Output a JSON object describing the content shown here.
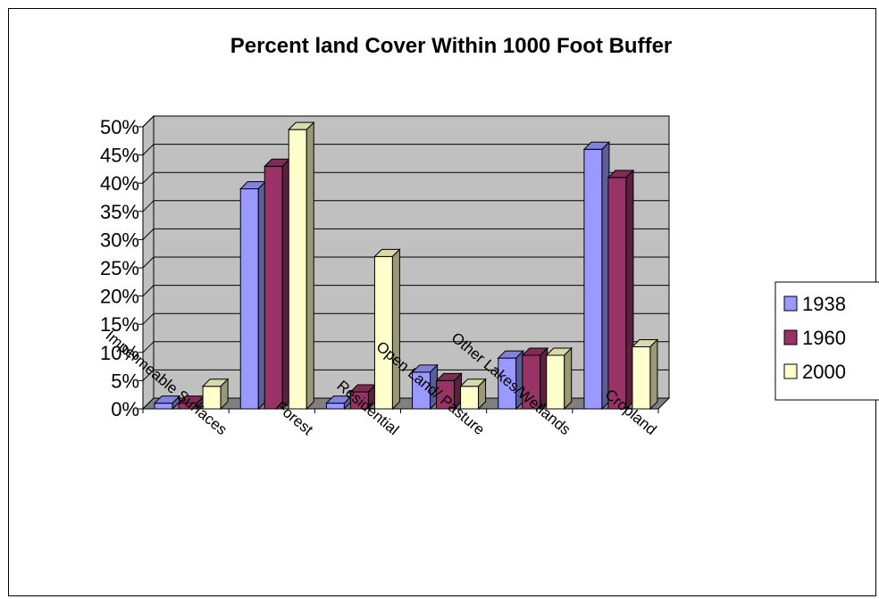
{
  "chart_data": {
    "type": "bar",
    "title": "Percent land Cover Within 1000 Foot Buffer",
    "xlabel": "",
    "ylabel": "",
    "ylim": [
      0,
      50
    ],
    "y_ticks": [
      "0%",
      "5%",
      "10%",
      "15%",
      "20%",
      "25%",
      "30%",
      "35%",
      "40%",
      "45%",
      "50%"
    ],
    "categories": [
      "Impermeable Surfaces",
      "Forest",
      "Residential",
      "Open Land/ Pasture",
      "Other Lakes/Wetlands",
      "Cropland"
    ],
    "series": [
      {
        "name": "1938",
        "values": [
          1,
          39,
          1,
          6.5,
          9,
          46
        ],
        "color": "#9999ff"
      },
      {
        "name": "1960",
        "values": [
          1,
          43,
          3,
          5,
          9.5,
          41
        ],
        "color": "#993366"
      },
      {
        "name": "2000",
        "values": [
          4,
          49.5,
          27,
          4,
          9.5,
          11
        ],
        "color": "#ffffcc"
      }
    ],
    "grid": true,
    "legend_position": "right",
    "wall_color": "#c0c0c0",
    "floor_color": "#808080"
  }
}
